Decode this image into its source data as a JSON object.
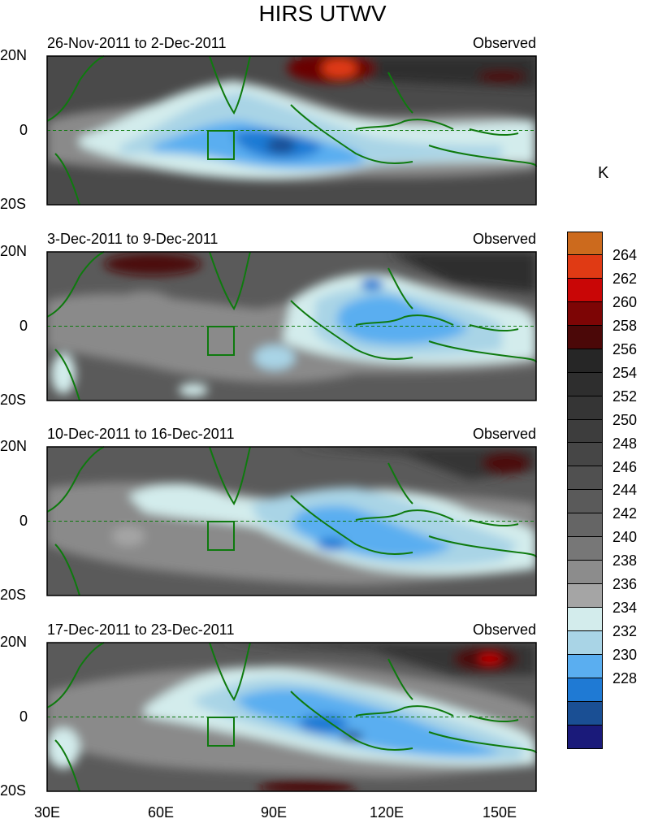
{
  "title": "HIRS UTWV",
  "unit": "K",
  "lat_labels": [
    "20N",
    "0",
    "20S"
  ],
  "lon_labels": [
    "30E",
    "60E",
    "90E",
    "120E",
    "150E"
  ],
  "panels": [
    {
      "period": "26-Nov-2011 to 2-Dec-2011",
      "tag": "Observed"
    },
    {
      "period": "3-Dec-2011 to 9-Dec-2011",
      "tag": "Observed"
    },
    {
      "period": "10-Dec-2011 to 16-Dec-2011",
      "tag": "Observed"
    },
    {
      "period": "17-Dec-2011 to 23-Dec-2011",
      "tag": "Observed"
    }
  ],
  "colorbar": {
    "colors": [
      "#cc6a1d",
      "#e03a14",
      "#c90606",
      "#7d0505",
      "#4b0808",
      "#262626",
      "#2e2e2e",
      "#353535",
      "#3d3d3d",
      "#464646",
      "#505050",
      "#5a5a5a",
      "#656565",
      "#777777",
      "#8c8c8c",
      "#a5a5a5",
      "#d3ecec",
      "#a9d4e6",
      "#5aaef0",
      "#1f7ad4",
      "#1a4f94",
      "#1a1a7a"
    ],
    "labels": [
      "264",
      "262",
      "260",
      "258",
      "256",
      "254",
      "252",
      "250",
      "248",
      "246",
      "244",
      "242",
      "240",
      "238",
      "236",
      "234",
      "232",
      "230",
      "228"
    ]
  },
  "colors": {
    "coastline": "#0e7a0e",
    "equator": "#0e7a0e"
  }
}
